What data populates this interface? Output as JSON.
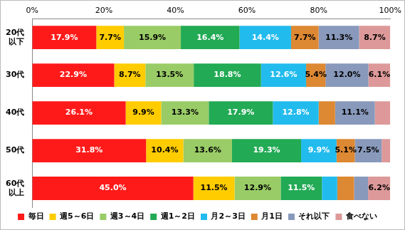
{
  "chart_data": {
    "type": "bar",
    "orientation": "horizontal",
    "stacked": true,
    "grid": false,
    "legend": "bottom",
    "data_labels": true,
    "categories": [
      "20代\n以下",
      "30代",
      "40代",
      "50代",
      "60代\n以上"
    ],
    "xlim": [
      0,
      100
    ],
    "xticks": [
      {
        "value": 0,
        "label": "0%"
      },
      {
        "value": 20,
        "label": "20%"
      },
      {
        "value": 40,
        "label": "40%"
      },
      {
        "value": 60,
        "label": "60%"
      },
      {
        "value": 80,
        "label": "80%"
      },
      {
        "value": 100,
        "label": "100%"
      }
    ],
    "series": [
      {
        "name": "毎日",
        "color": "#ff1a1a",
        "values": [
          17.9,
          22.9,
          26.1,
          31.8,
          45.0
        ],
        "value_labels": [
          "17.9%",
          "22.9%",
          "26.1%",
          "31.8%",
          "45.0%"
        ]
      },
      {
        "name": "週5～6日",
        "color": "#ffcc00",
        "values": [
          7.7,
          8.7,
          9.9,
          10.4,
          11.5
        ],
        "value_labels": [
          "7.7%",
          "8.7%",
          "9.9%",
          "10.4%",
          "11.5%"
        ]
      },
      {
        "name": "週3～4日",
        "color": "#99cc66",
        "values": [
          15.9,
          13.5,
          13.3,
          13.6,
          12.9
        ],
        "value_labels": [
          "15.9%",
          "13.5%",
          "13.3%",
          "13.6%",
          "12.9%"
        ]
      },
      {
        "name": "週1～2日",
        "color": "#22aa55",
        "values": [
          16.4,
          18.8,
          17.9,
          19.3,
          11.5
        ],
        "value_labels": [
          "16.4%",
          "18.8%",
          "17.9%",
          "19.3%",
          "11.5%"
        ]
      },
      {
        "name": "月2～3日",
        "color": "#22bbee",
        "values": [
          14.4,
          12.6,
          12.8,
          9.9,
          4.3
        ],
        "value_labels": [
          "14.4%",
          "12.6%",
          "12.8%",
          "9.9%",
          null
        ]
      },
      {
        "name": "月1日",
        "color": "#dd8833",
        "values": [
          7.7,
          5.4,
          4.6,
          5.1,
          4.7
        ],
        "value_labels": [
          "7.7%",
          "5.4%",
          null,
          "5.1%",
          null
        ]
      },
      {
        "name": "それ以下",
        "color": "#8899bb",
        "values": [
          11.3,
          12.0,
          11.1,
          7.5,
          3.9
        ],
        "value_labels": [
          "11.3%",
          "12.0%",
          "11.1%",
          "7.5%",
          null
        ]
      },
      {
        "name": "食べない",
        "color": "#dd9999",
        "values": [
          8.7,
          6.1,
          4.3,
          2.4,
          6.2
        ],
        "value_labels": [
          "8.7%",
          "6.1%",
          null,
          null,
          "6.2%"
        ]
      }
    ]
  }
}
